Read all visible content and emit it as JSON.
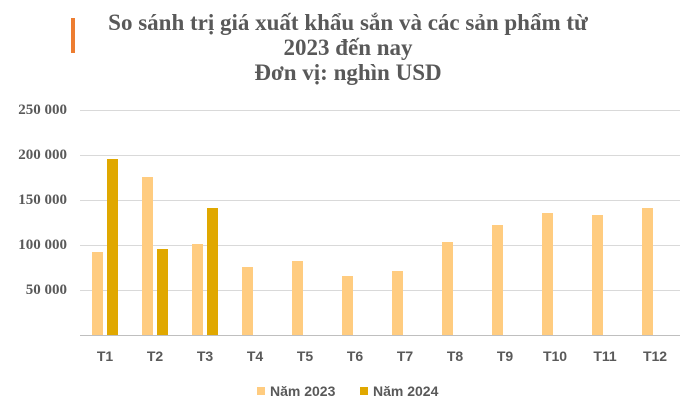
{
  "header": {
    "title_lines": [
      "So sánh trị giá xuất khẩu sắn và các sản phẩm từ",
      "2023 đến nay",
      "Đơn vị: nghìn USD"
    ],
    "accent_color": "#ED7D31"
  },
  "axis": {
    "y_ticks": [
      "250 000",
      "200 000",
      "150 000",
      "100 000",
      "50 000"
    ],
    "x_labels": [
      "T1",
      "T2",
      "T3",
      "T4",
      "T5",
      "T6",
      "T7",
      "T8",
      "T9",
      "T10",
      "T11",
      "T12"
    ]
  },
  "legend": {
    "items": [
      {
        "label": "Năm 2023",
        "color": "#FFCC80"
      },
      {
        "label": "Năm 2024",
        "color": "#E0A800"
      }
    ]
  },
  "chart_data": {
    "type": "bar",
    "title": "So sánh trị giá xuất khẩu sắn và các sản phẩm từ 2023 đến nay - Đơn vị: nghìn USD",
    "xlabel": "",
    "ylabel": "nghìn USD",
    "categories": [
      "T1",
      "T2",
      "T3",
      "T4",
      "T5",
      "T6",
      "T7",
      "T8",
      "T9",
      "T10",
      "T11",
      "T12"
    ],
    "series": [
      {
        "name": "Năm 2023",
        "color": "#FFCC80",
        "values": [
          92000,
          175000,
          101000,
          75000,
          82000,
          65000,
          71000,
          103000,
          122000,
          136000,
          133000,
          141000
        ]
      },
      {
        "name": "Năm 2024",
        "color": "#E0A800",
        "values": [
          196000,
          96000,
          141000,
          null,
          null,
          null,
          null,
          null,
          null,
          null,
          null,
          null
        ]
      }
    ],
    "ylim": [
      0,
      250000
    ],
    "y_ticks": [
      0,
      50000,
      100000,
      150000,
      200000,
      250000
    ],
    "grid": true,
    "legend_position": "bottom"
  }
}
